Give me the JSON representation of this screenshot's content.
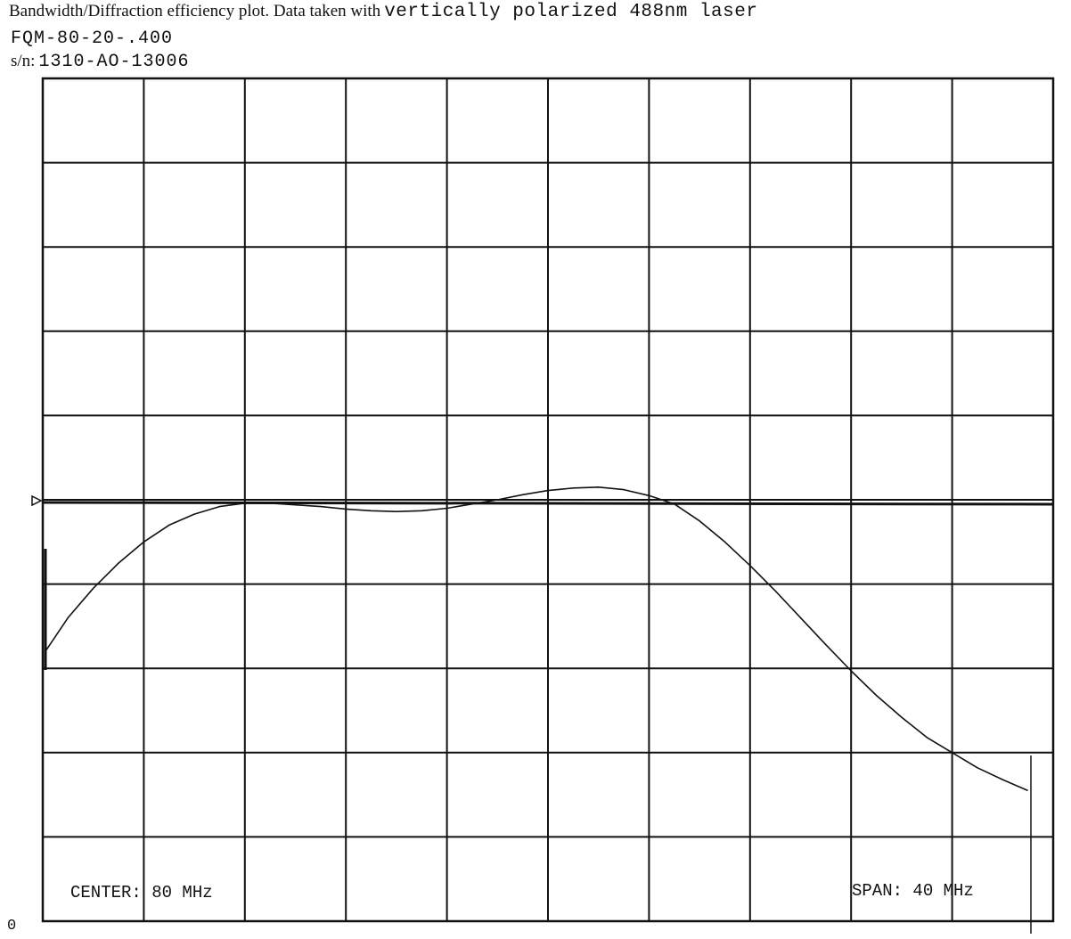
{
  "header": {
    "title_serif": "Bandwidth/Diffraction efficiency plot.  Data taken with",
    "title_mono": "vertically polarized 488nm laser",
    "model": "FQM-80-20-.400",
    "serial_label": "s/n:",
    "serial_value": "1310-AO-13006"
  },
  "footer": {
    "center": "CENTER: 80 MHz",
    "span": "SPAN: 40 MHz",
    "zero_label": "0"
  },
  "chart_data": {
    "type": "line",
    "title": "Bandwidth/Diffraction efficiency plot.",
    "xlabel": "",
    "ylabel": "",
    "xlim": [
      60,
      100
    ],
    "ylim": [
      0,
      10
    ],
    "grid": true,
    "reference_level": 5.0,
    "reference_marker": "triangle on left edge",
    "series": [
      {
        "x": [
          60.1,
          61.0,
          62.0,
          63.0,
          64.0,
          65.0,
          66.0,
          67.0,
          68.0,
          69.0,
          70.0,
          71.0,
          72.0,
          73.0,
          74.0,
          75.0,
          76.0,
          77.0,
          78.0,
          79.0,
          80.0,
          81.0,
          82.0,
          83.0,
          84.0,
          85.0,
          86.0,
          87.0,
          88.0,
          89.0,
          90.0,
          91.0,
          92.0,
          93.0,
          94.0,
          95.0,
          96.0,
          97.0,
          98.0,
          99.0
        ],
        "values": [
          3.2,
          3.6,
          3.95,
          4.25,
          4.5,
          4.7,
          4.83,
          4.92,
          4.96,
          4.96,
          4.94,
          4.92,
          4.89,
          4.87,
          4.86,
          4.87,
          4.9,
          4.95,
          5.0,
          5.06,
          5.11,
          5.14,
          5.15,
          5.12,
          5.05,
          4.95,
          4.75,
          4.5,
          4.22,
          3.92,
          3.6,
          3.28,
          2.97,
          2.68,
          2.42,
          2.18,
          2.0,
          1.82,
          1.68,
          1.55
        ]
      }
    ]
  }
}
